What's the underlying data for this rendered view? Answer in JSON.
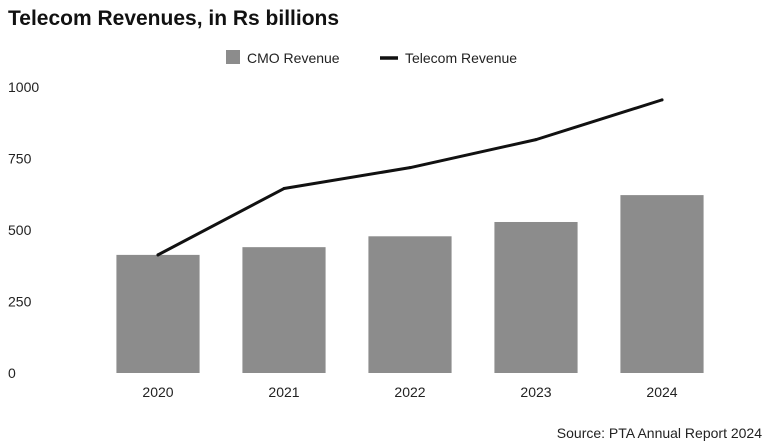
{
  "chart_data": {
    "type": "bar",
    "title": "Telecom Revenues, in Rs billions",
    "categories": [
      "2020",
      "2021",
      "2022",
      "2023",
      "2024"
    ],
    "series": [
      {
        "name": "CMO Revenue",
        "kind": "bar",
        "color": "#8c8c8c",
        "values": [
          413,
          440,
          478,
          528,
          622
        ]
      },
      {
        "name": "Telecom Revenue",
        "kind": "line",
        "color": "#111111",
        "values": [
          413,
          645,
          718,
          816,
          955
        ]
      }
    ],
    "ylim": [
      0,
      1000
    ],
    "yticks": [
      "0",
      "250",
      "500",
      "750",
      "1000"
    ],
    "xlabel": "",
    "ylabel": "",
    "legend_position": "top-center",
    "source": "Source: PTA Annual Report 2024"
  }
}
